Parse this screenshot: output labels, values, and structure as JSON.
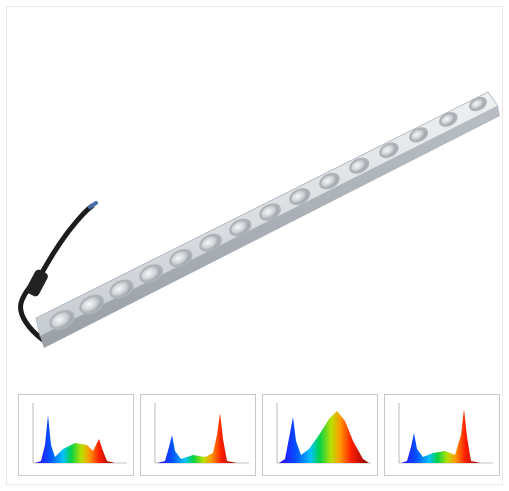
{
  "product": {
    "name": "led-grow-light-bar",
    "colors": {
      "body": "#d9dde0",
      "lens": "#c9cdd1",
      "cable": "#1a1a1a"
    },
    "lens_count": 15
  },
  "spectrum_thumbnails": [
    {
      "name": "spectrum-chart-1",
      "peaks": "blue-green-red"
    },
    {
      "name": "spectrum-chart-2",
      "peaks": "blue-red"
    },
    {
      "name": "spectrum-chart-3",
      "peaks": "blue-broad-red"
    },
    {
      "name": "spectrum-chart-4",
      "peaks": "blue-green-red-sharp"
    }
  ]
}
